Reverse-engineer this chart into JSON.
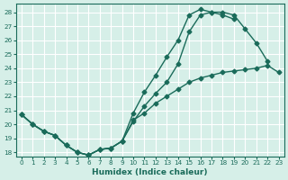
{
  "xlabel": "Humidex (Indice chaleur)",
  "bg_color": "#d6efe8",
  "grid_color": "#ffffff",
  "line_color": "#1a6b5a",
  "xlim": [
    -0.5,
    23.5
  ],
  "ylim": [
    17.7,
    28.6
  ],
  "yticks": [
    18,
    19,
    20,
    21,
    22,
    23,
    24,
    25,
    26,
    27,
    28
  ],
  "xticks": [
    0,
    1,
    2,
    3,
    4,
    5,
    6,
    7,
    8,
    9,
    10,
    11,
    12,
    13,
    14,
    15,
    16,
    17,
    18,
    19,
    20,
    21,
    22,
    23
  ],
  "line1_x": [
    0,
    1,
    2,
    3,
    4,
    5,
    6,
    7,
    8,
    9,
    10,
    11,
    12,
    13,
    14,
    15,
    16,
    17,
    18,
    19,
    20,
    21,
    22,
    23
  ],
  "line1_y": [
    20.7,
    20.0,
    19.5,
    19.2,
    18.5,
    18.0,
    17.8,
    18.2,
    18.3,
    18.8,
    20.2,
    21.3,
    22.2,
    23.0,
    24.3,
    26.6,
    27.8,
    28.0,
    28.0,
    27.8,
    26.8,
    25.8,
    24.5,
    null
  ],
  "line2_x": [
    0,
    1,
    2,
    3,
    4,
    5,
    6,
    7,
    8,
    9,
    10,
    11,
    12,
    13,
    14,
    15,
    16,
    17,
    18,
    19,
    20,
    21,
    22,
    23
  ],
  "line2_y": [
    20.7,
    20.0,
    19.5,
    19.2,
    18.5,
    18.0,
    17.8,
    18.2,
    18.3,
    18.8,
    20.8,
    22.3,
    23.5,
    24.8,
    26.0,
    27.8,
    28.2,
    28.0,
    27.8,
    27.5,
    null,
    null,
    null,
    null
  ],
  "line3_x": [
    0,
    1,
    2,
    3,
    4,
    5,
    6,
    7,
    8,
    9,
    10,
    11,
    12,
    13,
    14,
    15,
    16,
    17,
    18,
    19,
    20,
    21,
    22,
    23
  ],
  "line3_y": [
    20.7,
    20.0,
    19.5,
    19.2,
    18.5,
    18.0,
    17.8,
    18.2,
    18.3,
    18.8,
    20.3,
    20.8,
    21.5,
    22.0,
    22.5,
    23.0,
    23.3,
    23.5,
    23.7,
    23.8,
    23.9,
    24.0,
    24.2,
    23.7
  ],
  "marker_size": 2.5,
  "line_width": 1.0
}
